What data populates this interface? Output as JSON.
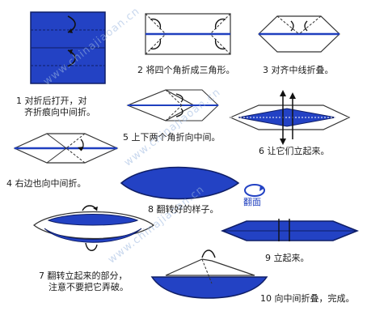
{
  "colors": {
    "blue": "#1f3fbf",
    "blue_dark": "#14287a",
    "paper_white": "#ffffff",
    "line": "#333333"
  },
  "watermark": "www.chinajiaoan.cn",
  "steps": [
    {
      "num": "1",
      "line1": "对折后打开，对",
      "line2": "齐折痕向中间折。"
    },
    {
      "num": "2",
      "line1": "将四个角折成三角形。"
    },
    {
      "num": "3",
      "line1": "对齐中线折叠。"
    },
    {
      "num": "4",
      "line1": "右边也向中间折。"
    },
    {
      "num": "5",
      "line1": "上下两个角折向中间。"
    },
    {
      "num": "6",
      "line1": "让它们立起来。"
    },
    {
      "num": "7",
      "line1": "翻转立起来的部分，",
      "line2": "注意不要把它弄破。"
    },
    {
      "num": "8",
      "line1": "翻转好的样子。"
    },
    {
      "num": "9",
      "line1": "立起来。"
    },
    {
      "num": "10",
      "line1": "向中间折叠，完成。"
    }
  ],
  "flip_label": "翻面"
}
